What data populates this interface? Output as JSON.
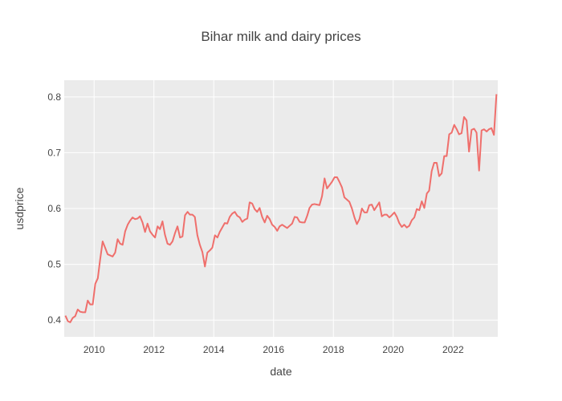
{
  "chart_data": {
    "type": "line",
    "title": "Bihar milk and dairy prices",
    "xlabel": "date",
    "ylabel": "usdprice",
    "x_range": [
      "2009-01-01",
      "2023-07-01"
    ],
    "y_range": [
      0.37,
      0.83
    ],
    "x_ticks": [
      {
        "label": "2010",
        "date": "2010-01-01"
      },
      {
        "label": "2012",
        "date": "2012-01-01"
      },
      {
        "label": "2014",
        "date": "2014-01-01"
      },
      {
        "label": "2016",
        "date": "2016-01-01"
      },
      {
        "label": "2018",
        "date": "2018-01-01"
      },
      {
        "label": "2020",
        "date": "2020-01-01"
      },
      {
        "label": "2022",
        "date": "2022-01-01"
      }
    ],
    "y_ticks": [
      {
        "label": "0.4",
        "value": 0.4
      },
      {
        "label": "0.5",
        "value": 0.5
      },
      {
        "label": "0.6",
        "value": 0.6
      },
      {
        "label": "0.7",
        "value": 0.7
      },
      {
        "label": "0.8",
        "value": 0.8
      }
    ],
    "grid": true,
    "legend": "none",
    "colors": {
      "line": "#ef6f6c",
      "plot_bg": "#ebebeb",
      "grid": "#ffffff"
    },
    "series": [
      {
        "x": [
          "2009-01-15",
          "2009-02-15",
          "2009-03-15",
          "2009-04-15",
          "2009-05-15",
          "2009-06-15",
          "2009-07-15",
          "2009-08-15",
          "2009-09-15",
          "2009-10-15",
          "2009-11-15",
          "2009-12-15",
          "2010-01-15",
          "2010-02-15",
          "2010-03-15",
          "2010-04-15",
          "2010-05-15",
          "2010-06-15",
          "2010-07-15",
          "2010-08-15",
          "2010-09-15",
          "2010-10-15",
          "2010-11-15",
          "2010-12-15",
          "2011-01-15",
          "2011-02-15",
          "2011-03-15",
          "2011-04-15",
          "2011-05-15",
          "2011-06-15",
          "2011-07-15",
          "2011-08-15",
          "2011-09-15",
          "2011-10-15",
          "2011-11-15",
          "2011-12-15",
          "2012-01-15",
          "2012-02-15",
          "2012-03-15",
          "2012-04-15",
          "2012-05-15",
          "2012-06-15",
          "2012-07-15",
          "2012-08-15",
          "2012-09-15",
          "2012-10-15",
          "2012-11-15",
          "2012-12-15",
          "2013-01-15",
          "2013-02-15",
          "2013-03-15",
          "2013-04-15",
          "2013-05-15",
          "2013-06-15",
          "2013-07-15",
          "2013-08-15",
          "2013-09-15",
          "2013-10-15",
          "2013-11-15",
          "2013-12-15",
          "2014-01-15",
          "2014-02-15",
          "2014-03-15",
          "2014-04-15",
          "2014-05-15",
          "2014-06-15",
          "2014-07-15",
          "2014-08-15",
          "2014-09-15",
          "2014-10-15",
          "2014-11-15",
          "2014-12-15",
          "2015-01-15",
          "2015-02-15",
          "2015-03-15",
          "2015-04-15",
          "2015-05-15",
          "2015-06-15",
          "2015-07-15",
          "2015-08-15",
          "2015-09-15",
          "2015-10-15",
          "2015-11-15",
          "2015-12-15",
          "2016-01-15",
          "2016-02-15",
          "2016-03-15",
          "2016-04-15",
          "2016-05-15",
          "2016-06-15",
          "2016-07-15",
          "2016-08-15",
          "2016-09-15",
          "2016-10-15",
          "2016-11-15",
          "2016-12-15",
          "2017-01-15",
          "2017-02-15",
          "2017-03-15",
          "2017-04-15",
          "2017-05-15",
          "2017-06-15",
          "2017-07-15",
          "2017-08-15",
          "2017-09-15",
          "2017-10-15",
          "2017-11-15",
          "2017-12-15",
          "2018-01-15",
          "2018-02-15",
          "2018-03-15",
          "2018-04-15",
          "2018-05-15",
          "2018-06-15",
          "2018-07-15",
          "2018-08-15",
          "2018-09-15",
          "2018-10-15",
          "2018-11-15",
          "2018-12-15",
          "2019-01-15",
          "2019-02-15",
          "2019-03-15",
          "2019-04-15",
          "2019-05-15",
          "2019-06-15",
          "2019-07-15",
          "2019-08-15",
          "2019-09-15",
          "2019-10-15",
          "2019-11-15",
          "2019-12-15",
          "2020-01-15",
          "2020-02-15",
          "2020-03-15",
          "2020-04-15",
          "2020-05-15",
          "2020-06-15",
          "2020-07-15",
          "2020-08-15",
          "2020-09-15",
          "2020-10-15",
          "2020-11-15",
          "2020-12-15",
          "2021-01-15",
          "2021-02-15",
          "2021-03-15",
          "2021-04-15",
          "2021-05-15",
          "2021-06-15",
          "2021-07-15",
          "2021-08-15",
          "2021-09-15",
          "2021-10-15",
          "2021-11-15",
          "2021-12-15",
          "2022-01-15",
          "2022-02-15",
          "2022-03-15",
          "2022-04-15",
          "2022-05-15",
          "2022-06-15",
          "2022-07-15",
          "2022-08-15",
          "2022-09-15",
          "2022-10-15",
          "2022-11-15",
          "2022-12-15",
          "2023-01-15",
          "2023-02-15",
          "2023-03-15",
          "2023-04-15",
          "2023-05-15",
          "2023-06-15"
        ],
        "values": [
          0.408,
          0.398,
          0.396,
          0.404,
          0.407,
          0.419,
          0.415,
          0.414,
          0.414,
          0.435,
          0.428,
          0.428,
          0.465,
          0.475,
          0.508,
          0.541,
          0.53,
          0.518,
          0.516,
          0.514,
          0.521,
          0.545,
          0.537,
          0.535,
          0.559,
          0.571,
          0.578,
          0.584,
          0.581,
          0.582,
          0.586,
          0.575,
          0.558,
          0.573,
          0.559,
          0.553,
          0.548,
          0.568,
          0.563,
          0.577,
          0.553,
          0.537,
          0.535,
          0.541,
          0.556,
          0.568,
          0.548,
          0.55,
          0.588,
          0.594,
          0.589,
          0.589,
          0.585,
          0.552,
          0.535,
          0.522,
          0.496,
          0.521,
          0.525,
          0.53,
          0.552,
          0.548,
          0.558,
          0.566,
          0.574,
          0.573,
          0.585,
          0.591,
          0.594,
          0.587,
          0.584,
          0.576,
          0.58,
          0.582,
          0.611,
          0.609,
          0.599,
          0.594,
          0.601,
          0.585,
          0.575,
          0.587,
          0.581,
          0.571,
          0.567,
          0.56,
          0.568,
          0.571,
          0.568,
          0.565,
          0.569,
          0.573,
          0.585,
          0.584,
          0.576,
          0.575,
          0.575,
          0.587,
          0.601,
          0.607,
          0.608,
          0.607,
          0.606,
          0.622,
          0.654,
          0.636,
          0.642,
          0.648,
          0.656,
          0.656,
          0.648,
          0.638,
          0.62,
          0.616,
          0.612,
          0.6,
          0.584,
          0.572,
          0.581,
          0.6,
          0.593,
          0.593,
          0.606,
          0.607,
          0.597,
          0.604,
          0.611,
          0.586,
          0.589,
          0.589,
          0.584,
          0.588,
          0.593,
          0.585,
          0.574,
          0.567,
          0.571,
          0.566,
          0.569,
          0.579,
          0.584,
          0.599,
          0.597,
          0.613,
          0.601,
          0.627,
          0.632,
          0.667,
          0.682,
          0.682,
          0.658,
          0.663,
          0.694,
          0.694,
          0.733,
          0.736,
          0.75,
          0.742,
          0.733,
          0.735,
          0.764,
          0.758,
          0.702,
          0.741,
          0.743,
          0.736,
          0.668,
          0.74,
          0.742,
          0.738,
          0.742,
          0.744,
          0.732,
          0.805
        ]
      }
    ]
  }
}
